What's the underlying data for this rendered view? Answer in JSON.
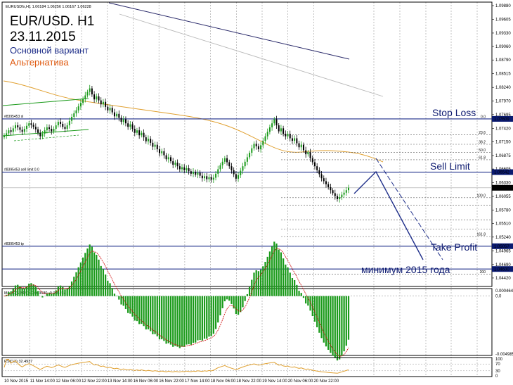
{
  "header": {
    "symbol_bar": "EURUSDfx,H1  1.06184 1.06256 1.06167 1.06228",
    "title_line1": "EUR/USD. H1",
    "title_line2": "23.11.2015",
    "primary": "Основной вариант",
    "alternative": "Альтернатива"
  },
  "colors": {
    "primary": "#1f2f8a",
    "alternative": "#e05a10",
    "bull_candle": "#1a9a1a",
    "bear_candle": "#000000",
    "ma": "#e0a030",
    "macd_hist": "#1a9a1a",
    "signal": "#cc0000",
    "rsi": "#e0a030",
    "label_box": "#0a1a70"
  },
  "chart_data": {
    "type": "candlestick",
    "symbol": "EURUSDfx",
    "timeframe": "H1",
    "ohlc_last": {
      "open": 1.06184,
      "high": 1.06256,
      "low": 1.06167,
      "close": 1.06228
    },
    "price_ticks": [
      "1.09880",
      "1.09605",
      "1.09330",
      "1.09060",
      "1.08790",
      "1.08515",
      "1.08240",
      "1.07970",
      "1.07695",
      "1.07420",
      "1.07150",
      "1.06875",
      "1.06605",
      "1.06330",
      "1.06055",
      "1.05780",
      "1.05510",
      "1.05240",
      "1.04965",
      "1.04690",
      "1.04420"
    ],
    "price_range": [
      1.0425,
      1.0995
    ],
    "time_labels": [
      "10 Nov 2015",
      "11 Nov 14:00",
      "12 Nov 06:00",
      "12 Nov 22:00",
      "13 Nov 14:00",
      "16 Nov 06:00",
      "16 Nov 22:00",
      "17 Nov 14:00",
      "18 Nov 06:00",
      "18 Nov 22:00",
      "19 Nov 14:00",
      "20 Nov 06:00",
      "20 Nov 22:00"
    ],
    "horizontal_lines": [
      {
        "label": "#8395453 sl",
        "price": 1.07609,
        "box": "1.07609"
      },
      {
        "label": "#8395453 sell limit 0.0",
        "price": 1.06542,
        "box": "1.06542"
      },
      {
        "label": "#8395453 tp",
        "price": 1.05057,
        "box": "1.05057"
      },
      {
        "label": "",
        "price": 1.046,
        "box": "1.04600"
      }
    ],
    "current_price": {
      "price": 1.06228,
      "box": "1.06228"
    },
    "fibonacci_levels": [
      {
        "label": "0.0",
        "price": 1.07609
      },
      {
        "label": "23.6",
        "price": 1.0729
      },
      {
        "label": "38.2",
        "price": 1.071
      },
      {
        "label": "50.0",
        "price": 1.0694
      },
      {
        "label": "61.8",
        "price": 1.0679
      },
      {
        "label": "100.0",
        "price": 1.0603
      },
      {
        "label": "161.8",
        "price": 1.0525
      },
      {
        "label": "200",
        "price": 1.045
      }
    ],
    "annotations": [
      "Stop Loss",
      "Sell Limit",
      "Take Profit",
      "минимум 2015 года"
    ],
    "closes": [
      1.0728,
      1.0732,
      1.0738,
      1.0735,
      1.0742,
      1.0748,
      1.0744,
      1.0739,
      1.0735,
      1.0741,
      1.0747,
      1.0752,
      1.0749,
      1.0745,
      1.074,
      1.0733,
      1.0726,
      1.0731,
      1.0738,
      1.0744,
      1.0741,
      1.0736,
      1.0741,
      1.0748,
      1.0755,
      1.0751,
      1.0745,
      1.0741,
      1.0748,
      1.0757,
      1.0765,
      1.0772,
      1.0778,
      1.0786,
      1.0793,
      1.0801,
      1.0808,
      1.0815,
      1.0822,
      1.081,
      1.08,
      1.0806,
      1.0798,
      1.079,
      1.0795,
      1.0785,
      1.0778,
      1.0783,
      1.0774,
      1.0766,
      1.0771,
      1.0763,
      1.0755,
      1.076,
      1.0752,
      1.0745,
      1.075,
      1.0741,
      1.0733,
      1.0738,
      1.0728,
      1.0733,
      1.0724,
      1.0716,
      1.0721,
      1.0713,
      1.0705,
      1.0709,
      1.07,
      1.0692,
      1.0696,
      1.0688,
      1.068,
      1.0684,
      1.0676,
      1.0669,
      1.0673,
      1.0666,
      1.066,
      1.0664,
      1.0658,
      1.0662,
      1.0656,
      1.0651,
      1.0655,
      1.0649,
      1.0653,
      1.0647,
      1.0642,
      1.0646,
      1.064,
      1.0644,
      1.0639,
      1.0643,
      1.0651,
      1.066,
      1.0668,
      1.0675,
      1.0682,
      1.0674,
      1.0666,
      1.0658,
      1.065,
      1.0641,
      1.0648,
      1.0657,
      1.0666,
      1.0675,
      1.0684,
      1.0693,
      1.0702,
      1.0711,
      1.0706,
      1.07,
      1.0708,
      1.0717,
      1.0726,
      1.0735,
      1.0744,
      1.0752,
      1.076,
      1.0748,
      1.0736,
      1.0742,
      1.0731,
      1.0726,
      1.0731,
      1.0722,
      1.0717,
      1.0722,
      1.0712,
      1.0704,
      1.0709,
      1.0698,
      1.069,
      1.0694,
      1.0682,
      1.0674,
      1.0666,
      1.0658,
      1.065,
      1.0642,
      1.0636,
      1.063,
      1.0624,
      1.0618,
      1.0612,
      1.0606,
      1.06,
      1.0604,
      1.0609,
      1.0613,
      1.0618,
      1.0623
    ],
    "macd": {
      "label": "MACD(5,34,5) -0.003680 -0.004224",
      "ticks": [
        "0.000464",
        "0.0",
        "-0.004985"
      ],
      "range": [
        -0.004985,
        0.000464
      ]
    },
    "rsi": {
      "label": "RSI(13) 32.4937",
      "ticks": [
        "100",
        "70",
        "30",
        "0"
      ],
      "range": [
        0,
        100
      ]
    }
  }
}
